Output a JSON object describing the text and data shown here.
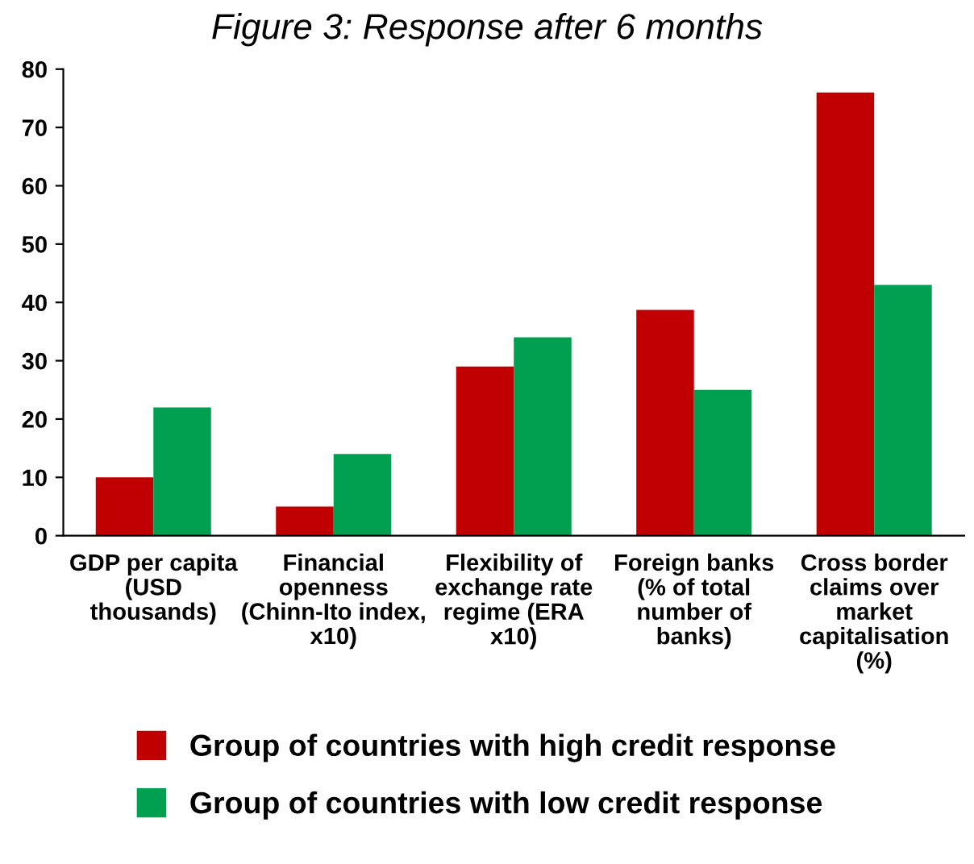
{
  "chart_data": {
    "type": "bar",
    "title": "Figure 3: Response after 6 months",
    "categories": [
      "GDP per capita\n(USD\nthousands)",
      "Financial\nopenness\n(Chinn-Ito index,\nx10)",
      "Flexibility of\nexchange rate\nregime (ERA\nx10)",
      "Foreign banks\n(% of total\nnumber of\nbanks)",
      "Cross border\nclaims over\nmarket\ncapitalisation\n(%)"
    ],
    "series": [
      {
        "name": "Group of countries with high credit response",
        "color": "#c00000",
        "values": [
          10,
          5,
          29,
          38.7,
          76
        ]
      },
      {
        "name": "Group of countries with low credit response",
        "color": "#00a050",
        "values": [
          22,
          14,
          34,
          25,
          43
        ]
      }
    ],
    "ylim": [
      0,
      80
    ],
    "yticks": [
      0,
      10,
      20,
      30,
      40,
      50,
      60,
      70,
      80
    ],
    "grid": false,
    "legend": "bottom"
  }
}
